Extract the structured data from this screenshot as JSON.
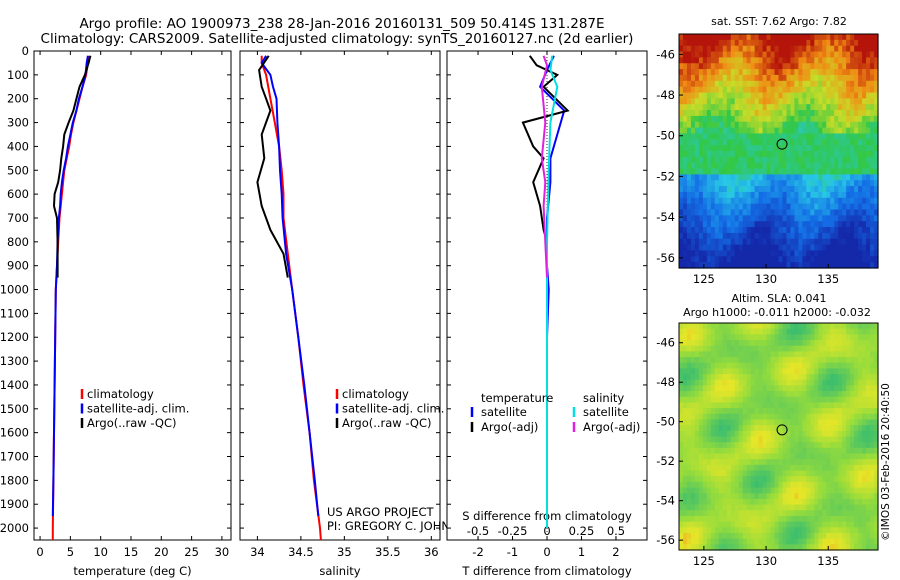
{
  "header": {
    "line1": "Argo profile: AO 1900973_238 28-Jan-2016 20160131_509 50.414S 131.287E",
    "line2": "Climatology: CARS2009. Satellite-adjusted climatology: synTS_20160127.nc (2d earlier)"
  },
  "colors": {
    "climatology": "#ff0000",
    "satellite": "#0000ff",
    "argo": "#000000",
    "sal_satellite": "#00e0e0",
    "sal_argo": "#e020e0"
  },
  "chart_data": [
    {
      "type": "line",
      "id": "temperature",
      "xlabel": "temperature (deg C)",
      "xlim": [
        -1,
        31.5
      ],
      "ylim": [
        0,
        2050
      ],
      "xticks": [
        0,
        5,
        10,
        15,
        20,
        25,
        30
      ],
      "yticks": [
        0,
        100,
        200,
        300,
        400,
        500,
        600,
        700,
        800,
        900,
        1000,
        1100,
        1200,
        1300,
        1400,
        1500,
        1600,
        1700,
        1800,
        1900,
        2000
      ],
      "legend": [
        "climatology",
        "satellite-adj. clim.",
        "Argo(..raw -QC)"
      ],
      "legend_position": "lower-center",
      "series": [
        {
          "name": "climatology",
          "color": "#ff0000",
          "points": [
            [
              8.0,
              20
            ],
            [
              7.9,
              50
            ],
            [
              7.6,
              100
            ],
            [
              7.0,
              150
            ],
            [
              6.5,
              200
            ],
            [
              6.0,
              250
            ],
            [
              5.5,
              300
            ],
            [
              5.1,
              350
            ],
            [
              4.8,
              400
            ],
            [
              4.4,
              450
            ],
            [
              4.0,
              500
            ],
            [
              3.8,
              550
            ],
            [
              3.6,
              600
            ],
            [
              3.4,
              650
            ],
            [
              3.2,
              700
            ],
            [
              3.0,
              800
            ],
            [
              2.8,
              900
            ],
            [
              2.6,
              1000
            ],
            [
              2.5,
              1200
            ],
            [
              2.4,
              1400
            ],
            [
              2.3,
              1600
            ],
            [
              2.2,
              1800
            ],
            [
              2.1,
              2000
            ],
            [
              2.1,
              2050
            ]
          ]
        },
        {
          "name": "satellite-adj. clim.",
          "color": "#0000ff",
          "points": [
            [
              7.9,
              20
            ],
            [
              7.7,
              50
            ],
            [
              7.5,
              100
            ],
            [
              7.0,
              150
            ],
            [
              6.4,
              200
            ],
            [
              6.0,
              250
            ],
            [
              5.4,
              300
            ],
            [
              5.0,
              350
            ],
            [
              4.6,
              400
            ],
            [
              4.3,
              450
            ],
            [
              3.9,
              500
            ],
            [
              3.6,
              550
            ],
            [
              3.4,
              600
            ],
            [
              3.3,
              650
            ],
            [
              3.1,
              700
            ],
            [
              2.9,
              800
            ],
            [
              2.8,
              900
            ],
            [
              2.6,
              1000
            ],
            [
              2.5,
              1200
            ],
            [
              2.4,
              1400
            ],
            [
              2.3,
              1600
            ],
            [
              2.2,
              1800
            ],
            [
              2.1,
              1950
            ]
          ]
        },
        {
          "name": "Argo(..raw -QC)",
          "color": "#000000",
          "points": [
            [
              8.3,
              20
            ],
            [
              8.0,
              50
            ],
            [
              7.4,
              100
            ],
            [
              6.5,
              150
            ],
            [
              6.0,
              200
            ],
            [
              5.5,
              250
            ],
            [
              4.7,
              300
            ],
            [
              4.0,
              350
            ],
            [
              3.8,
              400
            ],
            [
              3.5,
              450
            ],
            [
              3.3,
              500
            ],
            [
              3.0,
              550
            ],
            [
              2.4,
              600
            ],
            [
              2.3,
              650
            ],
            [
              2.8,
              700
            ],
            [
              2.9,
              800
            ],
            [
              2.9,
              900
            ],
            [
              2.9,
              950
            ]
          ]
        }
      ]
    },
    {
      "type": "line",
      "id": "salinity",
      "xlabel": "salinity",
      "xlim": [
        33.8,
        36.1
      ],
      "ylim": [
        0,
        2050
      ],
      "xticks": [
        34,
        34.5,
        35,
        35.5,
        36
      ],
      "xtick_labels": [
        "34",
        "34.5",
        "35",
        "35.5",
        "36"
      ],
      "legend": [
        "climatology",
        "satellite-adj. clim.",
        "Argo(..raw -QC)"
      ],
      "legend_position": "lower-right",
      "annotation": [
        "US ARGO PROJECT",
        "PI: GREGORY C. JOHNSON"
      ],
      "series": [
        {
          "name": "climatology",
          "color": "#ff0000",
          "points": [
            [
              34.05,
              20
            ],
            [
              34.05,
              50
            ],
            [
              34.1,
              100
            ],
            [
              34.15,
              200
            ],
            [
              34.2,
              300
            ],
            [
              34.25,
              400
            ],
            [
              34.28,
              500
            ],
            [
              34.3,
              600
            ],
            [
              34.3,
              700
            ],
            [
              34.35,
              850
            ],
            [
              34.4,
              1000
            ],
            [
              34.47,
              1200
            ],
            [
              34.53,
              1400
            ],
            [
              34.6,
              1600
            ],
            [
              34.65,
              1800
            ],
            [
              34.72,
              2000
            ],
            [
              34.73,
              2050
            ]
          ]
        },
        {
          "name": "satellite-adj. clim.",
          "color": "#0000ff",
          "points": [
            [
              34.1,
              20
            ],
            [
              34.05,
              50
            ],
            [
              34.15,
              100
            ],
            [
              34.18,
              150
            ],
            [
              34.22,
              200
            ],
            [
              34.23,
              300
            ],
            [
              34.25,
              400
            ],
            [
              34.26,
              500
            ],
            [
              34.28,
              600
            ],
            [
              34.29,
              700
            ],
            [
              34.33,
              850
            ],
            [
              34.4,
              1000
            ],
            [
              34.47,
              1200
            ],
            [
              34.54,
              1400
            ],
            [
              34.6,
              1600
            ],
            [
              34.66,
              1800
            ],
            [
              34.7,
              1950
            ]
          ]
        },
        {
          "name": "Argo(..raw -QC)",
          "color": "#000000",
          "points": [
            [
              34.13,
              20
            ],
            [
              34.02,
              80
            ],
            [
              34.05,
              150
            ],
            [
              34.1,
              200
            ],
            [
              34.15,
              250
            ],
            [
              34.05,
              350
            ],
            [
              34.08,
              450
            ],
            [
              34.0,
              550
            ],
            [
              34.05,
              650
            ],
            [
              34.15,
              750
            ],
            [
              34.3,
              850
            ],
            [
              34.35,
              950
            ]
          ]
        }
      ]
    },
    {
      "type": "line",
      "id": "difference",
      "xlabel": "T difference from climatology",
      "xlabel_top": "S difference from climatology",
      "xlim": [
        -2.9,
        2.9
      ],
      "ylim": [
        0,
        2050
      ],
      "xticks": [
        -2,
        -1,
        0,
        1,
        2
      ],
      "sticks": [
        -0.5,
        -0.25,
        0,
        0.25,
        0.5
      ],
      "stick_labels": [
        "-0.5",
        "-0.25",
        "0",
        "0.25",
        "0.5"
      ],
      "legend_titles": [
        "temperature",
        "salinity"
      ],
      "legend": [
        "satellite",
        "Argo(-adj)",
        "satellite",
        "Argo(-adj)"
      ],
      "legend_position": "lower-center",
      "series": [
        {
          "name": "satellite",
          "color": "#0000ff",
          "points": [
            [
              0.2,
              20
            ],
            [
              0.0,
              80
            ],
            [
              -0.2,
              150
            ],
            [
              0.5,
              250
            ],
            [
              0.3,
              350
            ],
            [
              0.1,
              450
            ],
            [
              0.1,
              550
            ],
            [
              0.0,
              700
            ],
            [
              0.0,
              800
            ],
            [
              0.0,
              900
            ],
            [
              0.05,
              1000
            ],
            [
              0.0,
              1200
            ],
            [
              0.0,
              1600
            ],
            [
              0.0,
              2000
            ]
          ]
        },
        {
          "name": "Argo(-adj)",
          "color": "#000000",
          "points": [
            [
              -0.5,
              20
            ],
            [
              -0.3,
              60
            ],
            [
              0.3,
              100
            ],
            [
              -0.1,
              150
            ],
            [
              0.6,
              250
            ],
            [
              -0.7,
              300
            ],
            [
              -0.4,
              400
            ],
            [
              -0.1,
              450
            ],
            [
              -0.4,
              550
            ],
            [
              -0.2,
              650
            ],
            [
              -0.1,
              750
            ],
            [
              0.0,
              800
            ],
            [
              0.0,
              950
            ]
          ]
        },
        {
          "name": "satellite",
          "color": "#00e0e0",
          "points": [
            [
              0.15,
              20
            ],
            [
              0.1,
              80
            ],
            [
              0.3,
              150
            ],
            [
              0.1,
              300
            ],
            [
              0.05,
              500
            ],
            [
              0.0,
              800
            ],
            [
              0.0,
              1200
            ],
            [
              0.0,
              1600
            ],
            [
              0.0,
              2000
            ]
          ]
        },
        {
          "name": "Argo(-adj)",
          "color": "#e020e0",
          "points": [
            [
              -0.1,
              20
            ],
            [
              0.0,
              60
            ],
            [
              -0.15,
              150
            ],
            [
              -0.05,
              300
            ],
            [
              -0.15,
              450
            ],
            [
              -0.05,
              550
            ],
            [
              -0.1,
              650
            ],
            [
              -0.05,
              800
            ],
            [
              0.0,
              950
            ]
          ]
        }
      ]
    },
    {
      "type": "heatmap",
      "id": "sst_map",
      "title": "sat. SST: 7.62 Argo: 7.82",
      "xlim": [
        123,
        139
      ],
      "ylim": [
        -56.5,
        -45
      ],
      "xticks": [
        125,
        130,
        135
      ],
      "yticks": [
        -46,
        -48,
        -50,
        -52,
        -54,
        -56
      ],
      "marker": [
        131.287,
        -50.414
      ]
    },
    {
      "type": "heatmap",
      "id": "sla_map",
      "title": "Altim. SLA: 0.041",
      "subtitle": "Argo h1000: -0.011 h2000: -0.032",
      "xlim": [
        123,
        139
      ],
      "ylim": [
        -56.5,
        -45
      ],
      "xticks": [
        125,
        130,
        135
      ],
      "yticks": [
        -46,
        -48,
        -50,
        -52,
        -54,
        -56
      ],
      "marker": [
        131.287,
        -50.414
      ]
    }
  ],
  "watermark": "©IMOS 03-Feb-2016 20:40:50"
}
